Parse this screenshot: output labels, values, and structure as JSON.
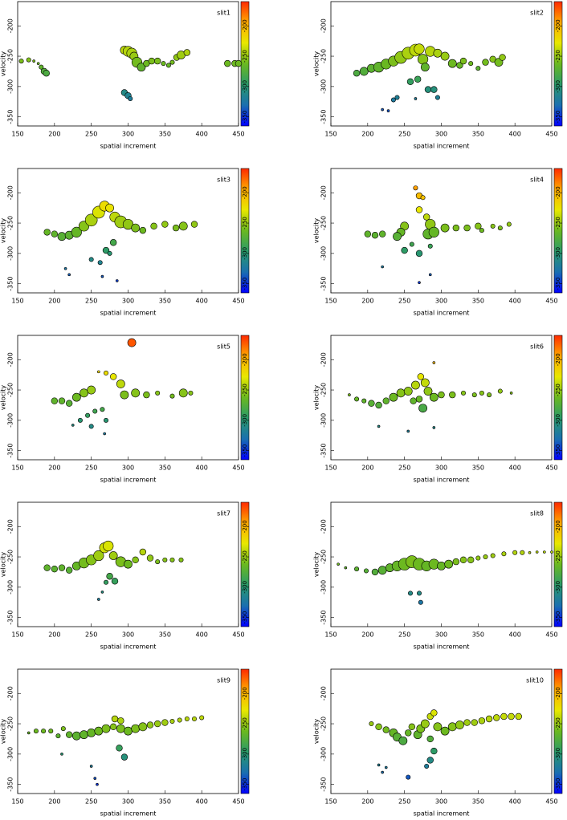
{
  "chart_data": [
    {
      "type": "scatter",
      "title": "slit1",
      "xlabel": "spatial increment",
      "ylabel": "velocity",
      "x": [
        155,
        165,
        172,
        178,
        182,
        186,
        189,
        295,
        300,
        305,
        308,
        312,
        318,
        325,
        332,
        340,
        348,
        355,
        360,
        366,
        372,
        380,
        295,
        300,
        303,
        435,
        445,
        450
      ],
      "values": [
        -258,
        -256,
        -258,
        -262,
        -268,
        -275,
        -278,
        -240,
        -242,
        -245,
        -250,
        -260,
        -268,
        -262,
        -258,
        -258,
        -262,
        -265,
        -260,
        -252,
        -248,
        -244,
        -310,
        -315,
        -320,
        -262,
        -262,
        -262
      ],
      "sizes": [
        2,
        2,
        1,
        1,
        2,
        3,
        3,
        4,
        5,
        5,
        4,
        5,
        4,
        3,
        3,
        3,
        2,
        2,
        2,
        3,
        4,
        3,
        3,
        3,
        2,
        3,
        3,
        3
      ],
      "xlim": [
        150,
        450
      ],
      "xticks": [
        150,
        200,
        250,
        300,
        350,
        400,
        450
      ],
      "ylim": [
        -365,
        -160
      ],
      "yticks": [
        -200,
        -250,
        -300,
        -350
      ],
      "colorbar": {
        "lim": [
          -365,
          -160
        ],
        "ticks": [
          -200,
          -250,
          -300,
          -350
        ],
        "colors": [
          "#0000ff",
          "#1a6fb0",
          "#2a9a6a",
          "#6ab820",
          "#e8e800",
          "#ffa800",
          "#ff2a00"
        ]
      }
    },
    {
      "type": "scatter",
      "title": "slit2",
      "xlabel": "spatial increment",
      "ylabel": "velocity",
      "x": [
        185,
        195,
        205,
        215,
        225,
        235,
        245,
        255,
        265,
        270,
        275,
        278,
        285,
        295,
        305,
        315,
        325,
        330,
        340,
        350,
        360,
        370,
        378,
        383,
        258,
        268,
        282,
        290,
        295,
        240,
        235,
        220,
        228,
        265
      ],
      "values": [
        -278,
        -275,
        -270,
        -268,
        -263,
        -258,
        -252,
        -245,
        -240,
        -238,
        -255,
        -268,
        -242,
        -245,
        -250,
        -262,
        -265,
        -258,
        -262,
        -270,
        -260,
        -255,
        -260,
        -252,
        -292,
        -288,
        -305,
        -305,
        -318,
        -318,
        -322,
        -338,
        -340,
        -320
      ],
      "sizes": [
        3,
        4,
        4,
        5,
        5,
        5,
        6,
        6,
        6,
        5,
        5,
        4,
        5,
        4,
        4,
        4,
        3,
        3,
        2,
        2,
        3,
        3,
        4,
        3,
        3,
        3,
        3,
        3,
        2,
        2,
        2,
        1,
        1,
        1
      ],
      "xlim": [
        150,
        450
      ],
      "xticks": [
        150,
        200,
        250,
        300,
        350,
        400,
        450
      ],
      "ylim": [
        -365,
        -160
      ],
      "yticks": [
        -200,
        -250,
        -300,
        -350
      ],
      "colorbar": {
        "lim": [
          -365,
          -160
        ],
        "ticks": [
          -200,
          -250,
          -300,
          -350
        ],
        "colors": [
          "#0000ff",
          "#1a6fb0",
          "#2a9a6a",
          "#6ab820",
          "#e8e800",
          "#ffa800",
          "#ff2a00"
        ]
      }
    },
    {
      "type": "scatter",
      "title": "slit3",
      "xlabel": "spatial increment",
      "ylabel": "velocity",
      "x": [
        190,
        200,
        210,
        220,
        230,
        240,
        250,
        260,
        268,
        275,
        282,
        290,
        300,
        310,
        320,
        335,
        350,
        365,
        375,
        390,
        280,
        270,
        250,
        262,
        275,
        215,
        220,
        265,
        285
      ],
      "values": [
        -265,
        -268,
        -272,
        -270,
        -265,
        -255,
        -245,
        -232,
        -222,
        -225,
        -240,
        -248,
        -252,
        -258,
        -262,
        -255,
        -252,
        -258,
        -255,
        -252,
        -282,
        -295,
        -310,
        -315,
        -300,
        -325,
        -335,
        -338,
        -345
      ],
      "sizes": [
        3,
        3,
        4,
        4,
        5,
        5,
        6,
        6,
        5,
        4,
        5,
        6,
        5,
        4,
        3,
        3,
        3,
        3,
        4,
        3,
        3,
        3,
        2,
        2,
        2,
        1,
        1,
        1,
        1
      ],
      "xlim": [
        150,
        450
      ],
      "xticks": [
        150,
        200,
        250,
        300,
        350,
        400,
        450
      ],
      "ylim": [
        -365,
        -160
      ],
      "yticks": [
        -200,
        -250,
        -300,
        -350
      ],
      "colorbar": {
        "lim": [
          -365,
          -160
        ],
        "ticks": [
          -200,
          -250,
          -300,
          -350
        ],
        "colors": [
          "#0000ff",
          "#1a6fb0",
          "#2a9a6a",
          "#6ab820",
          "#e8e800",
          "#ffa800",
          "#ff2a00"
        ]
      }
    },
    {
      "type": "scatter",
      "title": "slit4",
      "xlabel": "spatial increment",
      "ylabel": "velocity",
      "x": [
        265,
        270,
        275,
        270,
        280,
        285,
        282,
        290,
        305,
        320,
        335,
        350,
        355,
        370,
        380,
        392,
        250,
        245,
        240,
        200,
        210,
        220,
        250,
        260,
        270,
        285,
        220,
        270,
        285
      ],
      "values": [
        -192,
        -205,
        -208,
        -228,
        -240,
        -252,
        -268,
        -265,
        -258,
        -258,
        -258,
        -255,
        -262,
        -255,
        -258,
        -252,
        -255,
        -265,
        -272,
        -268,
        -270,
        -268,
        -295,
        -285,
        -300,
        -288,
        -322,
        -348,
        -335
      ],
      "sizes": [
        2,
        3,
        2,
        3,
        3,
        5,
        5,
        5,
        4,
        3,
        3,
        3,
        2,
        2,
        2,
        2,
        4,
        4,
        4,
        3,
        3,
        3,
        3,
        2,
        3,
        2,
        1,
        1,
        1
      ],
      "xlim": [
        150,
        450
      ],
      "xticks": [
        150,
        200,
        250,
        300,
        350,
        400,
        450
      ],
      "ylim": [
        -365,
        -160
      ],
      "yticks": [
        -200,
        -250,
        -300,
        -350
      ],
      "colorbar": {
        "lim": [
          -365,
          -160
        ],
        "ticks": [
          -200,
          -250,
          -300,
          -350
        ],
        "colors": [
          "#0000ff",
          "#1a6fb0",
          "#2a9a6a",
          "#6ab820",
          "#e8e800",
          "#ffa800",
          "#ff2a00"
        ]
      }
    },
    {
      "type": "scatter",
      "title": "slit5",
      "xlabel": "spatial increment",
      "ylabel": "velocity",
      "x": [
        305,
        260,
        270,
        280,
        290,
        295,
        310,
        325,
        340,
        360,
        375,
        385,
        200,
        210,
        220,
        230,
        240,
        250,
        235,
        245,
        255,
        265,
        250,
        270,
        225,
        268
      ],
      "values": [
        -172,
        -220,
        -222,
        -228,
        -240,
        -258,
        -255,
        -258,
        -255,
        -260,
        -255,
        -255,
        -268,
        -268,
        -272,
        -262,
        -255,
        -250,
        -300,
        -292,
        -285,
        -282,
        -310,
        -300,
        -308,
        -322
      ],
      "sizes": [
        4,
        1,
        2,
        3,
        4,
        4,
        4,
        3,
        2,
        2,
        4,
        2,
        3,
        3,
        3,
        4,
        4,
        4,
        2,
        2,
        2,
        2,
        2,
        2,
        1,
        1
      ],
      "xlim": [
        150,
        450
      ],
      "xticks": [
        150,
        200,
        250,
        300,
        350,
        400,
        450
      ],
      "ylim": [
        -365,
        -160
      ],
      "yticks": [
        -200,
        -250,
        -300,
        -350
      ],
      "colorbar": {
        "lim": [
          -365,
          -160
        ],
        "ticks": [
          -200,
          -250,
          -300,
          -350
        ],
        "colors": [
          "#0000ff",
          "#1a6fb0",
          "#2a9a6a",
          "#6ab820",
          "#e8e800",
          "#ffa800",
          "#ff2a00"
        ]
      }
    },
    {
      "type": "scatter",
      "title": "slit6",
      "xlabel": "spatial increment",
      "ylabel": "velocity",
      "x": [
        175,
        185,
        195,
        205,
        215,
        225,
        235,
        245,
        255,
        265,
        272,
        278,
        282,
        290,
        300,
        315,
        330,
        345,
        355,
        365,
        380,
        395,
        270,
        275,
        262,
        215,
        255,
        290,
        290
      ],
      "values": [
        -258,
        -265,
        -268,
        -272,
        -275,
        -268,
        -262,
        -255,
        -252,
        -242,
        -228,
        -238,
        -252,
        -262,
        -258,
        -258,
        -255,
        -258,
        -255,
        -258,
        -252,
        -255,
        -265,
        -280,
        -268,
        -310,
        -318,
        -312,
        -205
      ],
      "sizes": [
        1,
        2,
        2,
        3,
        3,
        3,
        4,
        4,
        4,
        4,
        3,
        4,
        4,
        4,
        3,
        3,
        2,
        2,
        2,
        2,
        2,
        1,
        3,
        4,
        3,
        1,
        1,
        1,
        1
      ],
      "xlim": [
        150,
        450
      ],
      "xticks": [
        150,
        200,
        250,
        300,
        350,
        400,
        450
      ],
      "ylim": [
        -365,
        -160
      ],
      "yticks": [
        -200,
        -250,
        -300,
        -350
      ],
      "colorbar": {
        "lim": [
          -365,
          -160
        ],
        "ticks": [
          -200,
          -250,
          -300,
          -350
        ],
        "colors": [
          "#0000ff",
          "#1a6fb0",
          "#2a9a6a",
          "#6ab820",
          "#e8e800",
          "#ffa800",
          "#ff2a00"
        ]
      }
    },
    {
      "type": "scatter",
      "title": "slit7",
      "xlabel": "spatial increment",
      "ylabel": "velocity",
      "x": [
        190,
        200,
        210,
        220,
        230,
        240,
        250,
        260,
        268,
        273,
        280,
        290,
        300,
        310,
        320,
        330,
        340,
        350,
        360,
        372,
        275,
        282,
        270,
        265,
        260
      ],
      "values": [
        -268,
        -270,
        -268,
        -272,
        -265,
        -260,
        -255,
        -248,
        -235,
        -232,
        -248,
        -258,
        -262,
        -255,
        -242,
        -252,
        -258,
        -255,
        -255,
        -255,
        -282,
        -290,
        -292,
        -308,
        -320
      ],
      "sizes": [
        3,
        3,
        3,
        3,
        4,
        5,
        5,
        5,
        5,
        5,
        4,
        5,
        4,
        3,
        3,
        3,
        2,
        2,
        2,
        2,
        3,
        3,
        2,
        1,
        1
      ],
      "xlim": [
        150,
        450
      ],
      "xticks": [
        150,
        200,
        250,
        300,
        350,
        400,
        450
      ],
      "ylim": [
        -365,
        -160
      ],
      "yticks": [
        -200,
        -250,
        -300,
        -350
      ],
      "colorbar": {
        "lim": [
          -365,
          -160
        ],
        "ticks": [
          -200,
          -250,
          -300,
          -350
        ],
        "colors": [
          "#0000ff",
          "#1a6fb0",
          "#2a9a6a",
          "#6ab820",
          "#e8e800",
          "#ffa800",
          "#ff2a00"
        ]
      }
    },
    {
      "type": "scatter",
      "title": "slit8",
      "xlabel": "spatial increment",
      "ylabel": "velocity",
      "x": [
        160,
        170,
        185,
        198,
        210,
        220,
        230,
        240,
        250,
        260,
        270,
        280,
        290,
        300,
        310,
        320,
        330,
        340,
        350,
        360,
        370,
        385,
        400,
        410,
        420,
        430,
        440,
        450,
        258,
        270,
        272
      ],
      "values": [
        -262,
        -268,
        -270,
        -273,
        -275,
        -272,
        -268,
        -265,
        -262,
        -258,
        -262,
        -265,
        -262,
        -265,
        -262,
        -258,
        -255,
        -255,
        -252,
        -250,
        -248,
        -245,
        -243,
        -243,
        -243,
        -242,
        -242,
        -242,
        -310,
        -310,
        -325
      ],
      "sizes": [
        1,
        1,
        2,
        2,
        3,
        4,
        4,
        5,
        6,
        6,
        6,
        5,
        5,
        4,
        4,
        3,
        3,
        3,
        2,
        2,
        2,
        2,
        2,
        2,
        1,
        1,
        1,
        1,
        2,
        2,
        2
      ],
      "xlim": [
        150,
        450
      ],
      "xticks": [
        150,
        200,
        250,
        300,
        350,
        400,
        450
      ],
      "ylim": [
        -365,
        -160
      ],
      "yticks": [
        -200,
        -250,
        -300,
        -350
      ],
      "colorbar": {
        "lim": [
          -365,
          -160
        ],
        "ticks": [
          -200,
          -250,
          -300,
          -350
        ],
        "colors": [
          "#0000ff",
          "#1a6fb0",
          "#2a9a6a",
          "#6ab820",
          "#e8e800",
          "#ffa800",
          "#ff2a00"
        ]
      }
    },
    {
      "type": "scatter",
      "title": "slit9",
      "xlabel": "spatial increment",
      "ylabel": "velocity",
      "x": [
        165,
        175,
        185,
        195,
        205,
        212,
        220,
        230,
        240,
        250,
        260,
        270,
        280,
        290,
        300,
        310,
        320,
        330,
        340,
        350,
        360,
        370,
        380,
        390,
        400,
        282,
        290,
        288,
        295,
        250,
        255,
        258,
        210
      ],
      "values": [
        -265,
        -262,
        -262,
        -262,
        -270,
        -258,
        -268,
        -270,
        -268,
        -265,
        -262,
        -258,
        -255,
        -258,
        -262,
        -258,
        -255,
        -252,
        -250,
        -248,
        -246,
        -244,
        -242,
        -242,
        -240,
        -242,
        -245,
        -290,
        -305,
        -320,
        -340,
        -350,
        -300
      ],
      "sizes": [
        1,
        2,
        2,
        2,
        2,
        2,
        3,
        4,
        4,
        4,
        4,
        4,
        3,
        4,
        4,
        4,
        4,
        3,
        3,
        3,
        2,
        2,
        2,
        2,
        2,
        3,
        3,
        3,
        3,
        1,
        1,
        1,
        1
      ],
      "xlim": [
        150,
        450
      ],
      "xticks": [
        150,
        200,
        250,
        300,
        350,
        400,
        450
      ],
      "ylim": [
        -365,
        -160
      ],
      "yticks": [
        -200,
        -250,
        -300,
        -350
      ],
      "colorbar": {
        "lim": [
          -365,
          -160
        ],
        "ticks": [
          -200,
          -250,
          -300,
          -350
        ],
        "colors": [
          "#0000ff",
          "#1a6fb0",
          "#2a9a6a",
          "#6ab820",
          "#e8e800",
          "#ffa800",
          "#ff2a00"
        ]
      }
    },
    {
      "type": "scatter",
      "title": "slit10",
      "xlabel": "spatial increment",
      "ylabel": "velocity",
      "x": [
        205,
        215,
        225,
        235,
        240,
        248,
        255,
        260,
        268,
        272,
        278,
        285,
        290,
        295,
        305,
        315,
        325,
        335,
        345,
        355,
        365,
        375,
        385,
        395,
        405,
        285,
        290,
        285,
        280,
        255,
        215,
        225,
        220
      ],
      "values": [
        -250,
        -255,
        -260,
        -265,
        -272,
        -278,
        -265,
        -255,
        -268,
        -258,
        -250,
        -238,
        -232,
        -255,
        -262,
        -255,
        -252,
        -248,
        -248,
        -245,
        -242,
        -240,
        -238,
        -238,
        -238,
        -275,
        -295,
        -310,
        -320,
        -338,
        -318,
        -322,
        -330
      ],
      "sizes": [
        2,
        3,
        3,
        4,
        4,
        4,
        3,
        3,
        4,
        4,
        4,
        3,
        3,
        4,
        4,
        4,
        4,
        3,
        3,
        3,
        3,
        3,
        3,
        3,
        3,
        3,
        3,
        3,
        2,
        2,
        1,
        1,
        1
      ],
      "xlim": [
        150,
        450
      ],
      "xticks": [
        150,
        200,
        250,
        300,
        350,
        400,
        450
      ],
      "ylim": [
        -365,
        -160
      ],
      "yticks": [
        -200,
        -250,
        -300,
        -350
      ],
      "colorbar": {
        "lim": [
          -365,
          -160
        ],
        "ticks": [
          -200,
          -250,
          -300,
          -350
        ],
        "colors": [
          "#0000ff",
          "#1a6fb0",
          "#2a9a6a",
          "#6ab820",
          "#e8e800",
          "#ffa800",
          "#ff2a00"
        ]
      }
    }
  ]
}
